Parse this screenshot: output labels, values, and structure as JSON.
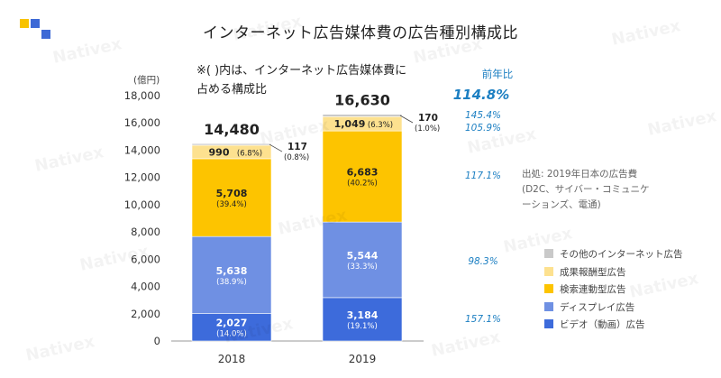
{
  "title": "インターネット広告媒体費の広告種別構成比",
  "note_line1": "※( )内は、インターネット広告媒体費に",
  "note_line2": "占める構成比",
  "side_note": {
    "line1": "出処: 2019年日本の広告費",
    "line2": "(D2C、サイバー・コミュニケ",
    "line3": "ーションズ、電通)"
  },
  "brand": "Nativex",
  "colors": {
    "other": "#c9c9c9",
    "performance": "#fde18f",
    "search": "#fdc400",
    "display": "#6f90e3",
    "video": "#3d6bdb",
    "growth": "#1c7fc2",
    "logo_yellow": "#f8c300",
    "logo_blue": "#3e6ad6"
  },
  "chart_data": {
    "type": "bar",
    "stacked": true,
    "categories": [
      "2018",
      "2019"
    ],
    "y_unit": "(億円)",
    "ylim": [
      0,
      18000
    ],
    "yticks": [
      "0",
      "2,000",
      "4,000",
      "6,000",
      "8,000",
      "10,000",
      "12,000",
      "14,000",
      "16,000",
      "18,000"
    ],
    "grid": false,
    "legend_position": "right",
    "series": [
      {
        "name": "ビデオ（動画）広告",
        "key": "video",
        "values": [
          2027,
          3184
        ],
        "labels": [
          "2,027",
          "3,184"
        ],
        "shares": [
          "(14.0%)",
          "(19.1%)"
        ],
        "growth": "157.1%"
      },
      {
        "name": "ディスプレイ広告",
        "key": "display",
        "values": [
          5638,
          5544
        ],
        "labels": [
          "5,638",
          "5,544"
        ],
        "shares": [
          "(38.9%)",
          "(33.3%)"
        ],
        "growth": "98.3%"
      },
      {
        "name": "検索連動型広告",
        "key": "search",
        "values": [
          5708,
          6683
        ],
        "labels": [
          "5,708",
          "6,683"
        ],
        "shares": [
          "(39.4%)",
          "(40.2%)"
        ],
        "growth": "117.1%"
      },
      {
        "name": "成果報酬型広告",
        "key": "performance",
        "values": [
          990,
          1049
        ],
        "labels": [
          "990",
          "1,049"
        ],
        "shares": [
          "(6.8%)",
          "(6.3%)"
        ],
        "growth": "105.9%"
      },
      {
        "name": "その他のインターネット広告",
        "key": "other",
        "values": [
          117,
          170
        ],
        "labels": [
          "117",
          "170"
        ],
        "shares": [
          "(0.8%)",
          "(1.0%)"
        ],
        "growth": "145.4%"
      }
    ],
    "totals": [
      14480,
      16630
    ],
    "total_labels": [
      "14,480",
      "16,630"
    ],
    "growth_header": "前年比",
    "total_growth": "114.8%"
  }
}
